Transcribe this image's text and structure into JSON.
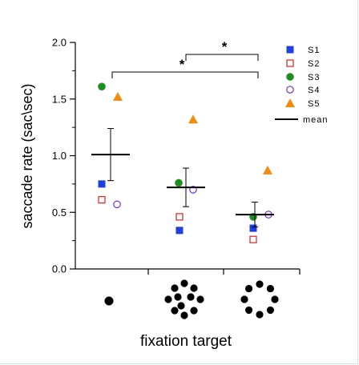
{
  "chart_data": {
    "type": "scatter",
    "title": "",
    "xlabel": "fixation target",
    "ylabel": "saccade rate (sac\\sec)",
    "ylim": [
      0,
      2
    ],
    "yticks": [
      "0.0",
      "0.5",
      "1.0",
      "1.5",
      "2.0"
    ],
    "grid": false,
    "legend_position": "top-right",
    "categories": [
      "single-dot",
      "filled-cluster",
      "ring-cluster"
    ],
    "series": [
      {
        "name": "S1",
        "marker": "square-filled",
        "color": "#1f3fe0",
        "values": [
          0.75,
          0.34,
          0.36
        ]
      },
      {
        "name": "S2",
        "marker": "square-open",
        "color": "#e02020",
        "values": [
          0.61,
          0.46,
          0.26
        ]
      },
      {
        "name": "S3",
        "marker": "circle-filled",
        "color": "#1e8f1e",
        "values": [
          1.61,
          0.76,
          0.46
        ]
      },
      {
        "name": "S4",
        "marker": "circle-open",
        "color": "#7a2fd0",
        "values": [
          0.57,
          0.7,
          0.48
        ]
      },
      {
        "name": "S5",
        "marker": "triangle-filled",
        "color": "#f08c10",
        "values": [
          1.52,
          1.32,
          0.87
        ]
      }
    ],
    "mean": {
      "name": "mean",
      "values": [
        1.01,
        0.72,
        0.48
      ],
      "err_low": [
        0.78,
        0.55,
        0.37
      ],
      "err_high": [
        1.24,
        0.89,
        0.59
      ]
    },
    "significance": [
      {
        "from": 1,
        "to": 2,
        "label": "*"
      },
      {
        "from": 0,
        "to": 2,
        "label": "*"
      }
    ]
  }
}
